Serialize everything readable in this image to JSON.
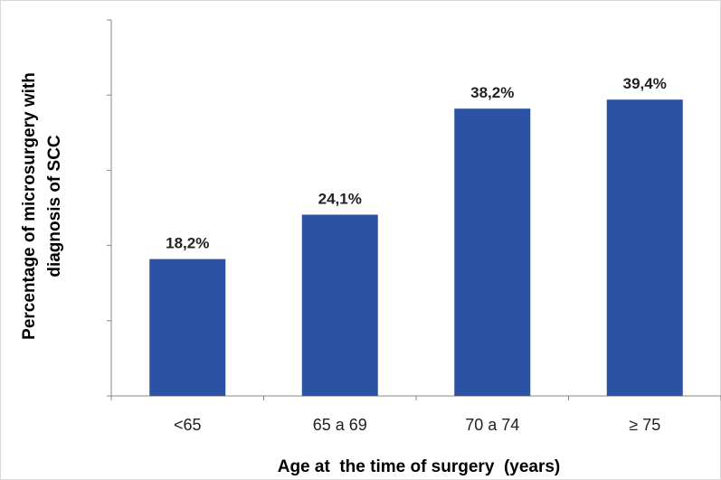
{
  "chart_data": {
    "type": "bar",
    "categories": [
      "<65",
      "65 a 69",
      "70 a 74",
      "≥ 75"
    ],
    "values": [
      18.2,
      24.1,
      38.2,
      39.4
    ],
    "data_labels": [
      "18,2%",
      "24,1%",
      "38,2%",
      "39,4%"
    ],
    "title": "",
    "xlabel": "Age at  the time of surgery  (years)",
    "ylabel_lines": [
      "Percentage of microsurgery with",
      "diagnosis of SCC"
    ],
    "ylim": [
      0,
      50
    ],
    "y_ticks": [
      0,
      10,
      20,
      30,
      40,
      50
    ],
    "show_y_tick_labels": false,
    "grid": false,
    "legend": "none",
    "bar_color": "#2b52a4"
  }
}
